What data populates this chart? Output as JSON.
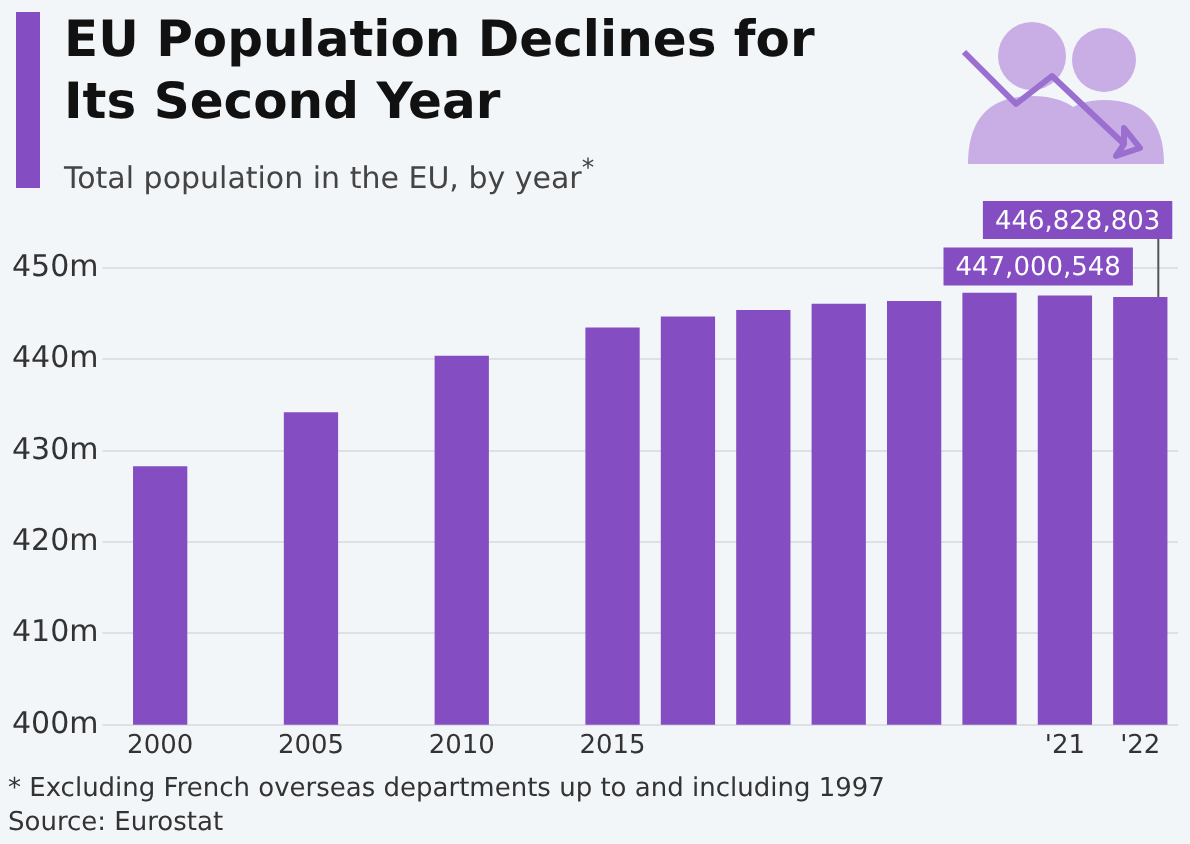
{
  "chart_data": {
    "type": "bar",
    "title": "EU Population Declines for Its Second Year",
    "subtitle": "Total population in the EU, by year$^{*}$",
    "categories": [
      "2000",
      null,
      "2005",
      null,
      "2010",
      null,
      "2015",
      null,
      null,
      null,
      null,
      null,
      "'21",
      "'22"
    ],
    "values": [
      428300000,
      null,
      434200000,
      null,
      440400000,
      null,
      443500000,
      444700000,
      445400000,
      446100000,
      446400000,
      447300000,
      447000548,
      446828803
    ],
    "value_labels": [
      null,
      null,
      null,
      null,
      null,
      null,
      null,
      null,
      null,
      null,
      null,
      null,
      "447,000,548",
      "446,828,803"
    ],
    "color": "#844ec2",
    "ylim": [
      400000000,
      450000000
    ],
    "yticks": [
      {
        "value": 400000000,
        "label": "400m"
      },
      {
        "value": 410000000,
        "label": "410m"
      },
      {
        "value": 420000000,
        "label": "420m"
      },
      {
        "value": 430000000,
        "label": "430m"
      },
      {
        "value": 440000000,
        "label": "440m"
      },
      {
        "value": 450000000,
        "label": "450m"
      }
    ],
    "grid": "y",
    "annotations": [
      "* Excluding French overseas departments up to and including 1997",
      "Source: Eurostat"
    ]
  }
}
